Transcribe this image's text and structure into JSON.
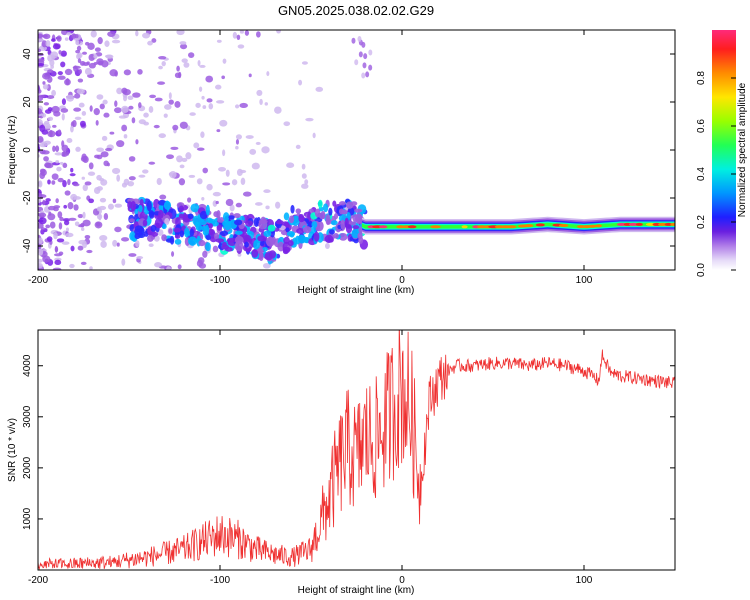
{
  "figure": {
    "title": "GN05.2025.038.02.02.G29"
  },
  "chart_data": [
    {
      "type": "heatmap",
      "title": "GN05.2025.038.02.02.G29",
      "xlabel": "Height of straight line (km)",
      "ylabel": "Frequency (Hz)",
      "xlim": [
        -200,
        150
      ],
      "ylim": [
        -50,
        50
      ],
      "x_ticks": [
        -200,
        -100,
        0,
        100
      ],
      "y_ticks": [
        -40,
        -20,
        0,
        20,
        40
      ],
      "colorbar": {
        "label": "Normalized spectral amplitude",
        "range": [
          0,
          1
        ],
        "ticks": [
          0.0,
          0.2,
          0.4,
          0.6,
          0.8
        ],
        "colormap": [
          "#ffffff",
          "#cfb8ef",
          "#9c5ce0",
          "#7a22e6",
          "#2a2aff",
          "#00b4ff",
          "#00ffd0",
          "#33ff33",
          "#c8ff00",
          "#ffd500",
          "#ff7a00",
          "#ff1a1a",
          "#ff2a7a"
        ]
      },
      "ridge": {
        "description_x": [
          -150,
          -130,
          -110,
          -90,
          -70,
          -60,
          -45,
          -30,
          -20,
          0,
          20,
          40,
          60,
          80,
          100,
          120,
          150
        ],
        "frequency_hz": [
          -28,
          -30,
          -32,
          -35,
          -38,
          -32,
          -30,
          -29,
          -32,
          -32,
          -32,
          -32,
          -32,
          -31,
          -32,
          -31,
          -31
        ]
      },
      "grid": false
    },
    {
      "type": "line",
      "xlabel": "Height of straight line (km)",
      "ylabel": "SNR (10 * v/v)",
      "xlim": [
        -200,
        150
      ],
      "ylim": [
        0,
        4700
      ],
      "x_ticks": [
        -200,
        -100,
        0,
        100
      ],
      "y_ticks": [
        1000,
        2000,
        3000,
        4000
      ],
      "series": [
        {
          "color": "#ef3030",
          "x": [
            -200,
            -180,
            -160,
            -140,
            -120,
            -100,
            -90,
            -80,
            -70,
            -60,
            -50,
            -45,
            -40,
            -35,
            -30,
            -25,
            -20,
            -15,
            -10,
            -5,
            0,
            5,
            10,
            15,
            20,
            25,
            30,
            40,
            50,
            60,
            70,
            80,
            90,
            100,
            105,
            108,
            110,
            115,
            120,
            130,
            140,
            150
          ],
          "values": [
            100,
            120,
            150,
            250,
            400,
            700,
            600,
            400,
            300,
            250,
            400,
            900,
            1400,
            2000,
            2400,
            2200,
            2600,
            2500,
            2800,
            3200,
            3600,
            3100,
            1600,
            3300,
            3700,
            3900,
            4000,
            4000,
            4050,
            4050,
            4000,
            4050,
            4000,
            3900,
            3800,
            3700,
            4200,
            3850,
            3800,
            3750,
            3700,
            3650
          ]
        }
      ],
      "grid": false
    }
  ]
}
